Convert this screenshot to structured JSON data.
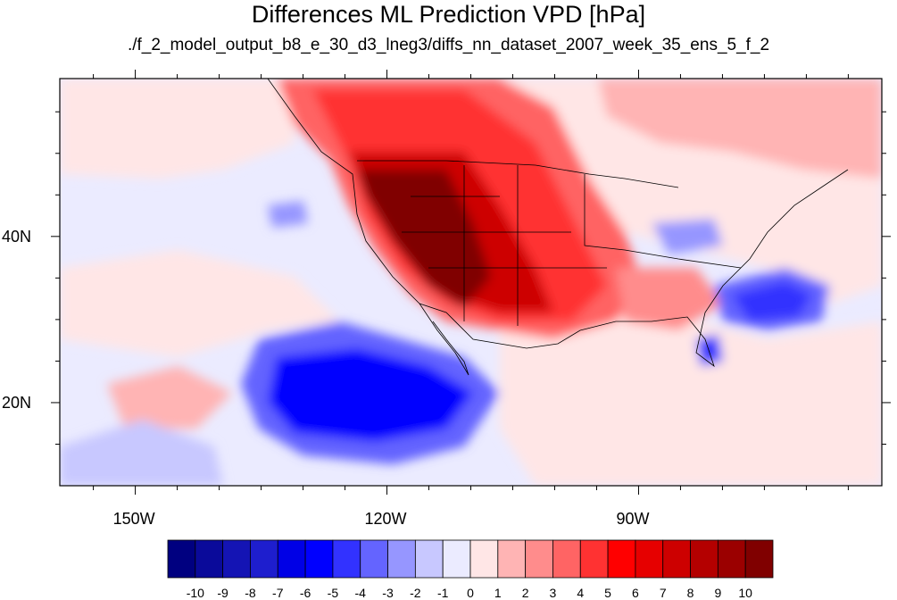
{
  "title": "Differences ML Prediction VPD [hPa]",
  "subtitle": "./f_2_model_output_b8_e_30_d3_lneg3/diffs_nn_dataset_2007_week_35_ens_5_f_2",
  "map": {
    "lon_range": [
      -159,
      -61
    ],
    "lat_range": [
      10,
      59
    ],
    "lat_labels": [
      {
        "lat": 40,
        "label": "40N"
      },
      {
        "lat": 20,
        "label": "20N"
      }
    ],
    "lon_labels": [
      {
        "lon": -150,
        "label": "150W"
      },
      {
        "lon": -120,
        "label": "120W"
      },
      {
        "lon": -90,
        "label": "90W"
      }
    ]
  },
  "colorbar": {
    "levels": [
      "-10",
      "-9",
      "-8",
      "-7",
      "-6",
      "-5",
      "-4",
      "-3",
      "-2",
      "-1",
      "0",
      "1",
      "2",
      "3",
      "4",
      "5",
      "6",
      "7",
      "8",
      "9",
      "10"
    ],
    "colors": [
      "#000080",
      "#0a0a9a",
      "#1414b4",
      "#1e1ece",
      "#0000e6",
      "#0000ff",
      "#3232ff",
      "#6464ff",
      "#9696ff",
      "#c8c8ff",
      "#ebebff",
      "#ffe6e6",
      "#ffb4b4",
      "#ff8c8c",
      "#ff6464",
      "#ff3232",
      "#ff0000",
      "#e60000",
      "#cd0000",
      "#b40000",
      "#9b0000",
      "#800000"
    ]
  }
}
